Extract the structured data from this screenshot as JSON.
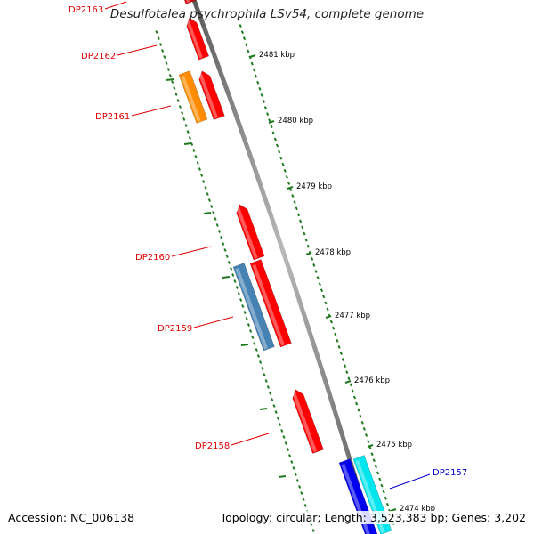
{
  "map": {
    "title": "Desulfotalea psychrophila LSv54, complete genome",
    "accession": "Accession: NC_006138",
    "summary": "Topology: circular; Length: 3,523,383 bp; Genes: 3,202",
    "colors": {
      "backbone": "#8a8a8a",
      "tick": "#1f7a1f",
      "label_red": "#dd0000",
      "label_blue": "#0000cc"
    },
    "scale_labels": [
      "2481 kbp",
      "2480 kbp",
      "2479 kbp",
      "2478 kbp",
      "2477 kbp",
      "2476 kbp",
      "2475 kbp",
      "2474 kbp"
    ],
    "genes": [
      {
        "label": "DP2163",
        "color": "#dd0000",
        "label_color": "#dd0000",
        "strand": "forward"
      },
      {
        "label": "DP2162",
        "color": "#ff0000",
        "label_color": "#dd0000",
        "strand": "forward"
      },
      {
        "label": "DP2161",
        "color": "#ff0000",
        "label_color": "#dd0000",
        "strand": "forward"
      },
      {
        "label": "DP2161",
        "color": "#ff8c00",
        "label_color": "#dd0000",
        "strand": "none"
      },
      {
        "label": "DP2160",
        "color": "#ff0000",
        "label_color": "#dd0000",
        "strand": "forward"
      },
      {
        "label": "DP2159",
        "color": "#ff0000",
        "label_color": "#dd0000",
        "strand": "none"
      },
      {
        "label": "DP2159",
        "color": "#4682b4",
        "label_color": "#dd0000",
        "strand": "none"
      },
      {
        "label": "DP2158",
        "color": "#ff0000",
        "label_color": "#dd0000",
        "strand": "forward"
      },
      {
        "label": "DP2157",
        "color": "#0000ee",
        "label_color": "#0000cc",
        "strand": "none"
      },
      {
        "label": "DP2157",
        "color": "#00e5ee",
        "label_color": "#0000cc",
        "strand": "none"
      }
    ],
    "gene_labels": [
      {
        "text": "DP2163",
        "color": "#dd0000"
      },
      {
        "text": "DP2162",
        "color": "#dd0000"
      },
      {
        "text": "DP2161",
        "color": "#dd0000"
      },
      {
        "text": "DP2160",
        "color": "#dd0000"
      },
      {
        "text": "DP2159",
        "color": "#dd0000"
      },
      {
        "text": "DP2158",
        "color": "#dd0000"
      },
      {
        "text": "DP2157",
        "color": "#0000cc"
      }
    ]
  }
}
